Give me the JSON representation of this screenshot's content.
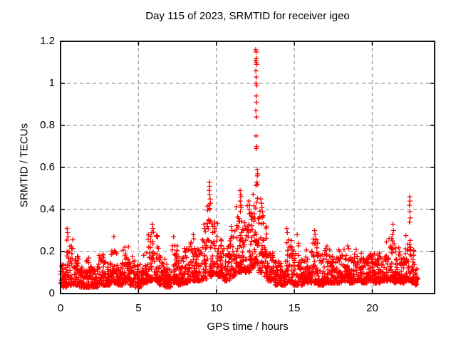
{
  "figure": {
    "background": "#ffffff",
    "text_color": "#000000"
  },
  "chart_data": {
    "type": "scatter",
    "title": "Day 115 of 2023, SRMTID for receiver igeo",
    "xlabel": "GPS time / hours",
    "ylabel": "SRMTID / TECUs",
    "xlim": [
      0,
      24
    ],
    "ylim": [
      0,
      1.2
    ],
    "xticks": [
      {
        "v": 0,
        "label": "0"
      },
      {
        "v": 5,
        "label": "5"
      },
      {
        "v": 10,
        "label": "10"
      },
      {
        "v": 15,
        "label": "15"
      },
      {
        "v": 20,
        "label": "20"
      }
    ],
    "yticks": [
      {
        "v": 0.0,
        "label": "0"
      },
      {
        "v": 0.2,
        "label": "0.2"
      },
      {
        "v": 0.4,
        "label": "0.4"
      },
      {
        "v": 0.6,
        "label": "0.6"
      },
      {
        "v": 0.8,
        "label": "0.8"
      },
      {
        "v": 1.0,
        "label": "1"
      },
      {
        "v": 1.2,
        "label": "1.2"
      }
    ],
    "grid": true,
    "grid_color": "#a8a8a8",
    "axis_color": "#000000",
    "legend": "none",
    "series_name": "SRMTID",
    "marker": {
      "symbol": "plus",
      "color": "#ff0000",
      "size": 7,
      "stroke_width": 1.3
    },
    "data_span_hours": [
      0.05,
      22.95
    ],
    "peak_points": [
      [
        0.42,
        0.31
      ],
      [
        0.45,
        0.29
      ],
      [
        0.48,
        0.27
      ],
      [
        3.42,
        0.27
      ],
      [
        5.85,
        0.29
      ],
      [
        5.88,
        0.33
      ],
      [
        5.92,
        0.31
      ],
      [
        7.25,
        0.27
      ],
      [
        8.52,
        0.28
      ],
      [
        8.55,
        0.26
      ],
      [
        9.2,
        0.33
      ],
      [
        9.23,
        0.31
      ],
      [
        9.52,
        0.42
      ],
      [
        9.53,
        0.49
      ],
      [
        9.55,
        0.53
      ],
      [
        9.56,
        0.47
      ],
      [
        9.57,
        0.51
      ],
      [
        9.58,
        0.4
      ],
      [
        9.6,
        0.45
      ],
      [
        9.62,
        0.43
      ],
      [
        10.95,
        0.32
      ],
      [
        11.0,
        0.3
      ],
      [
        11.52,
        0.49
      ],
      [
        11.53,
        0.44
      ],
      [
        11.54,
        0.39
      ],
      [
        11.55,
        0.47
      ],
      [
        11.56,
        0.42
      ],
      [
        11.57,
        0.46
      ],
      [
        11.58,
        0.41
      ],
      [
        12.08,
        0.44
      ],
      [
        12.1,
        0.4
      ],
      [
        12.12,
        0.42
      ],
      [
        12.15,
        0.38
      ],
      [
        12.52,
        1.16
      ],
      [
        12.52,
        1.11
      ],
      [
        12.53,
        1.06
      ],
      [
        12.53,
        0.87
      ],
      [
        12.54,
        1.0
      ],
      [
        12.54,
        0.75
      ],
      [
        12.55,
        1.15
      ],
      [
        12.55,
        1.1
      ],
      [
        12.55,
        1.03
      ],
      [
        12.55,
        0.94
      ],
      [
        12.55,
        0.69
      ],
      [
        12.56,
        1.12
      ],
      [
        12.56,
        0.91
      ],
      [
        12.56,
        0.84
      ],
      [
        12.57,
        0.99
      ],
      [
        12.58,
        1.09
      ],
      [
        12.58,
        0.7
      ],
      [
        12.6,
        0.53
      ],
      [
        12.62,
        0.59
      ],
      [
        12.63,
        0.56
      ],
      [
        12.64,
        0.52
      ],
      [
        12.65,
        0.57
      ],
      [
        12.85,
        0.45
      ],
      [
        12.88,
        0.43
      ],
      [
        12.92,
        0.41
      ],
      [
        12.95,
        0.39
      ],
      [
        13.0,
        0.37
      ],
      [
        14.52,
        0.31
      ],
      [
        14.55,
        0.29
      ],
      [
        15.18,
        0.28
      ],
      [
        16.3,
        0.3
      ],
      [
        16.33,
        0.28
      ],
      [
        21.3,
        0.28
      ],
      [
        21.33,
        0.33
      ],
      [
        21.36,
        0.3
      ],
      [
        22.38,
        0.42
      ],
      [
        22.39,
        0.34
      ],
      [
        22.4,
        0.46
      ],
      [
        22.41,
        0.39
      ],
      [
        22.42,
        0.44
      ],
      [
        22.43,
        0.36
      ]
    ],
    "baseline_model": {
      "seed": 115,
      "points_per_hour": 110,
      "y_bias_exponent": 2.2,
      "epoch_grid_per_hour": 120,
      "segments": [
        [
          0.0,
          0.4,
          0.03,
          0.14
        ],
        [
          0.4,
          0.8,
          0.04,
          0.26
        ],
        [
          0.8,
          1.2,
          0.04,
          0.2
        ],
        [
          1.2,
          1.6,
          0.03,
          0.13
        ],
        [
          1.6,
          2.0,
          0.03,
          0.17
        ],
        [
          2.0,
          2.4,
          0.03,
          0.13
        ],
        [
          2.4,
          2.8,
          0.04,
          0.2
        ],
        [
          2.8,
          3.2,
          0.04,
          0.15
        ],
        [
          3.2,
          3.6,
          0.05,
          0.23
        ],
        [
          3.6,
          4.0,
          0.04,
          0.16
        ],
        [
          4.0,
          4.4,
          0.05,
          0.24
        ],
        [
          4.4,
          4.8,
          0.04,
          0.18
        ],
        [
          4.8,
          5.2,
          0.03,
          0.14
        ],
        [
          5.2,
          5.6,
          0.05,
          0.2
        ],
        [
          5.6,
          6.0,
          0.06,
          0.3
        ],
        [
          6.0,
          6.3,
          0.06,
          0.28
        ],
        [
          6.3,
          6.7,
          0.04,
          0.18
        ],
        [
          6.7,
          7.1,
          0.03,
          0.14
        ],
        [
          7.1,
          7.5,
          0.05,
          0.24
        ],
        [
          7.5,
          7.9,
          0.04,
          0.18
        ],
        [
          7.9,
          8.3,
          0.05,
          0.22
        ],
        [
          8.3,
          8.7,
          0.06,
          0.26
        ],
        [
          8.7,
          9.1,
          0.06,
          0.22
        ],
        [
          9.1,
          9.4,
          0.07,
          0.32
        ],
        [
          9.4,
          9.8,
          0.08,
          0.42
        ],
        [
          9.8,
          10.1,
          0.09,
          0.36
        ],
        [
          10.1,
          10.5,
          0.08,
          0.28
        ],
        [
          10.5,
          10.9,
          0.06,
          0.26
        ],
        [
          10.9,
          11.2,
          0.08,
          0.32
        ],
        [
          11.2,
          11.6,
          0.1,
          0.42
        ],
        [
          11.6,
          11.9,
          0.1,
          0.38
        ],
        [
          11.9,
          12.2,
          0.1,
          0.42
        ],
        [
          12.2,
          12.45,
          0.12,
          0.48
        ],
        [
          12.45,
          12.7,
          0.14,
          0.52
        ],
        [
          12.7,
          13.0,
          0.1,
          0.42
        ],
        [
          13.0,
          13.3,
          0.08,
          0.34
        ],
        [
          13.3,
          13.7,
          0.06,
          0.2
        ],
        [
          13.7,
          14.1,
          0.04,
          0.16
        ],
        [
          14.1,
          14.5,
          0.04,
          0.19
        ],
        [
          14.5,
          14.9,
          0.05,
          0.26
        ],
        [
          14.9,
          15.3,
          0.04,
          0.24
        ],
        [
          15.3,
          15.7,
          0.04,
          0.17
        ],
        [
          15.7,
          16.1,
          0.05,
          0.21
        ],
        [
          16.1,
          16.5,
          0.05,
          0.26
        ],
        [
          16.5,
          16.9,
          0.04,
          0.19
        ],
        [
          16.9,
          17.3,
          0.05,
          0.23
        ],
        [
          17.3,
          17.7,
          0.05,
          0.19
        ],
        [
          17.7,
          18.1,
          0.05,
          0.21
        ],
        [
          18.1,
          18.5,
          0.06,
          0.24
        ],
        [
          18.5,
          18.9,
          0.05,
          0.19
        ],
        [
          18.9,
          19.3,
          0.06,
          0.21
        ],
        [
          19.3,
          19.7,
          0.05,
          0.17
        ],
        [
          19.7,
          20.1,
          0.06,
          0.19
        ],
        [
          20.1,
          20.5,
          0.05,
          0.21
        ],
        [
          20.5,
          20.9,
          0.06,
          0.19
        ],
        [
          20.9,
          21.4,
          0.06,
          0.27
        ],
        [
          21.4,
          21.8,
          0.05,
          0.22
        ],
        [
          21.8,
          22.1,
          0.05,
          0.17
        ],
        [
          22.1,
          22.5,
          0.06,
          0.28
        ],
        [
          22.5,
          22.75,
          0.05,
          0.22
        ],
        [
          22.75,
          22.95,
          0.04,
          0.14
        ]
      ]
    }
  }
}
